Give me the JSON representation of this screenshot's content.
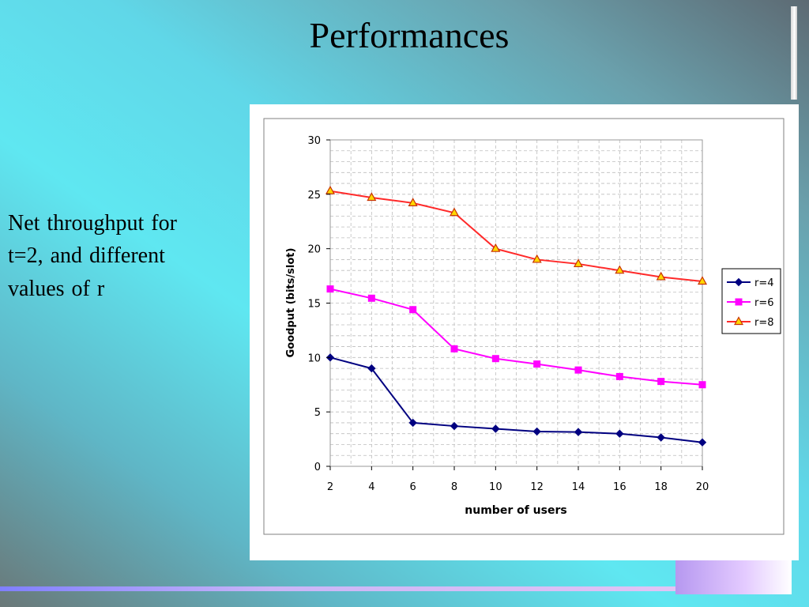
{
  "slide": {
    "title": "Performances",
    "body_lines": [
      "Net throughput for",
      "t=2, and different",
      "values of r"
    ]
  },
  "chart_data": {
    "type": "line",
    "title": "",
    "xlabel": "number of users",
    "ylabel": "Goodput (bits/slot)",
    "x": [
      2,
      4,
      6,
      8,
      10,
      12,
      14,
      16,
      18,
      20
    ],
    "xlim": [
      2,
      20
    ],
    "ylim": [
      0,
      30
    ],
    "yticks": [
      0,
      5,
      10,
      15,
      20,
      25,
      30
    ],
    "grid": true,
    "legend_position": "right",
    "series": [
      {
        "name": "r=4",
        "color": "#000080",
        "marker": "diamond",
        "values": [
          10.0,
          9.0,
          4.0,
          3.7,
          3.45,
          3.2,
          3.15,
          3.0,
          2.65,
          2.2
        ]
      },
      {
        "name": "r=6",
        "color": "#ff00ff",
        "marker": "square",
        "values": [
          16.3,
          15.45,
          14.4,
          10.8,
          9.9,
          9.4,
          8.85,
          8.25,
          7.8,
          7.5
        ]
      },
      {
        "name": "r=8",
        "color": "#ff2a2a",
        "marker": "triangle",
        "values": [
          25.3,
          24.7,
          24.2,
          23.3,
          20.0,
          19.0,
          18.6,
          18.0,
          17.4,
          17.0
        ]
      }
    ]
  }
}
